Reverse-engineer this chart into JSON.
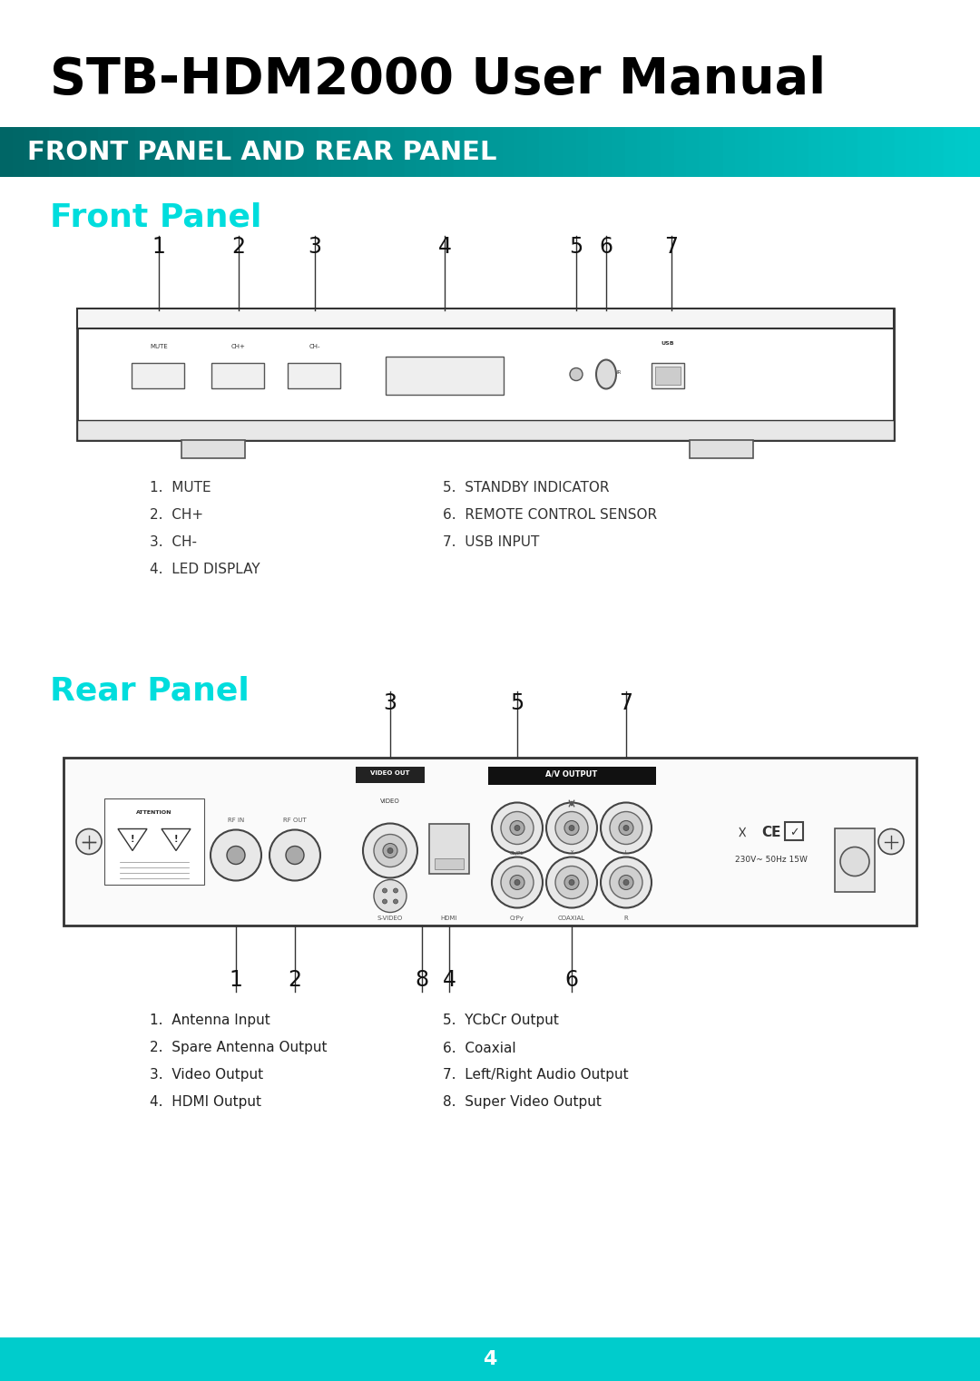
{
  "title": "STB-HDM2000 User Manual",
  "section_header": "FRONT PANEL AND REAR PANEL",
  "front_panel_title": "Front Panel",
  "rear_panel_title": "Rear Panel",
  "cyan_color": "#00DDDD",
  "front_labels_left": [
    "1.  MUTE",
    "2.  CH+",
    "3.  CH-",
    "4.  LED DISPLAY"
  ],
  "front_labels_right": [
    "5.  STANDBY INDICATOR",
    "6.  REMOTE CONTROL SENSOR",
    "7.  USB INPUT"
  ],
  "rear_labels_left": [
    "1.  Antenna Input",
    "2.  Spare Antenna Output",
    "3.  Video Output",
    "4.  HDMI Output"
  ],
  "rear_labels_right": [
    "5.  YCbCr Output",
    "6.  Coaxial",
    "7.  Left/Right Audio Output",
    "8.  Super Video Output"
  ],
  "page_number": "4",
  "bg_color": "#FFFFFF",
  "text_color": "#000000",
  "dark_teal": "#006666",
  "light_teal": "#00CCCC"
}
